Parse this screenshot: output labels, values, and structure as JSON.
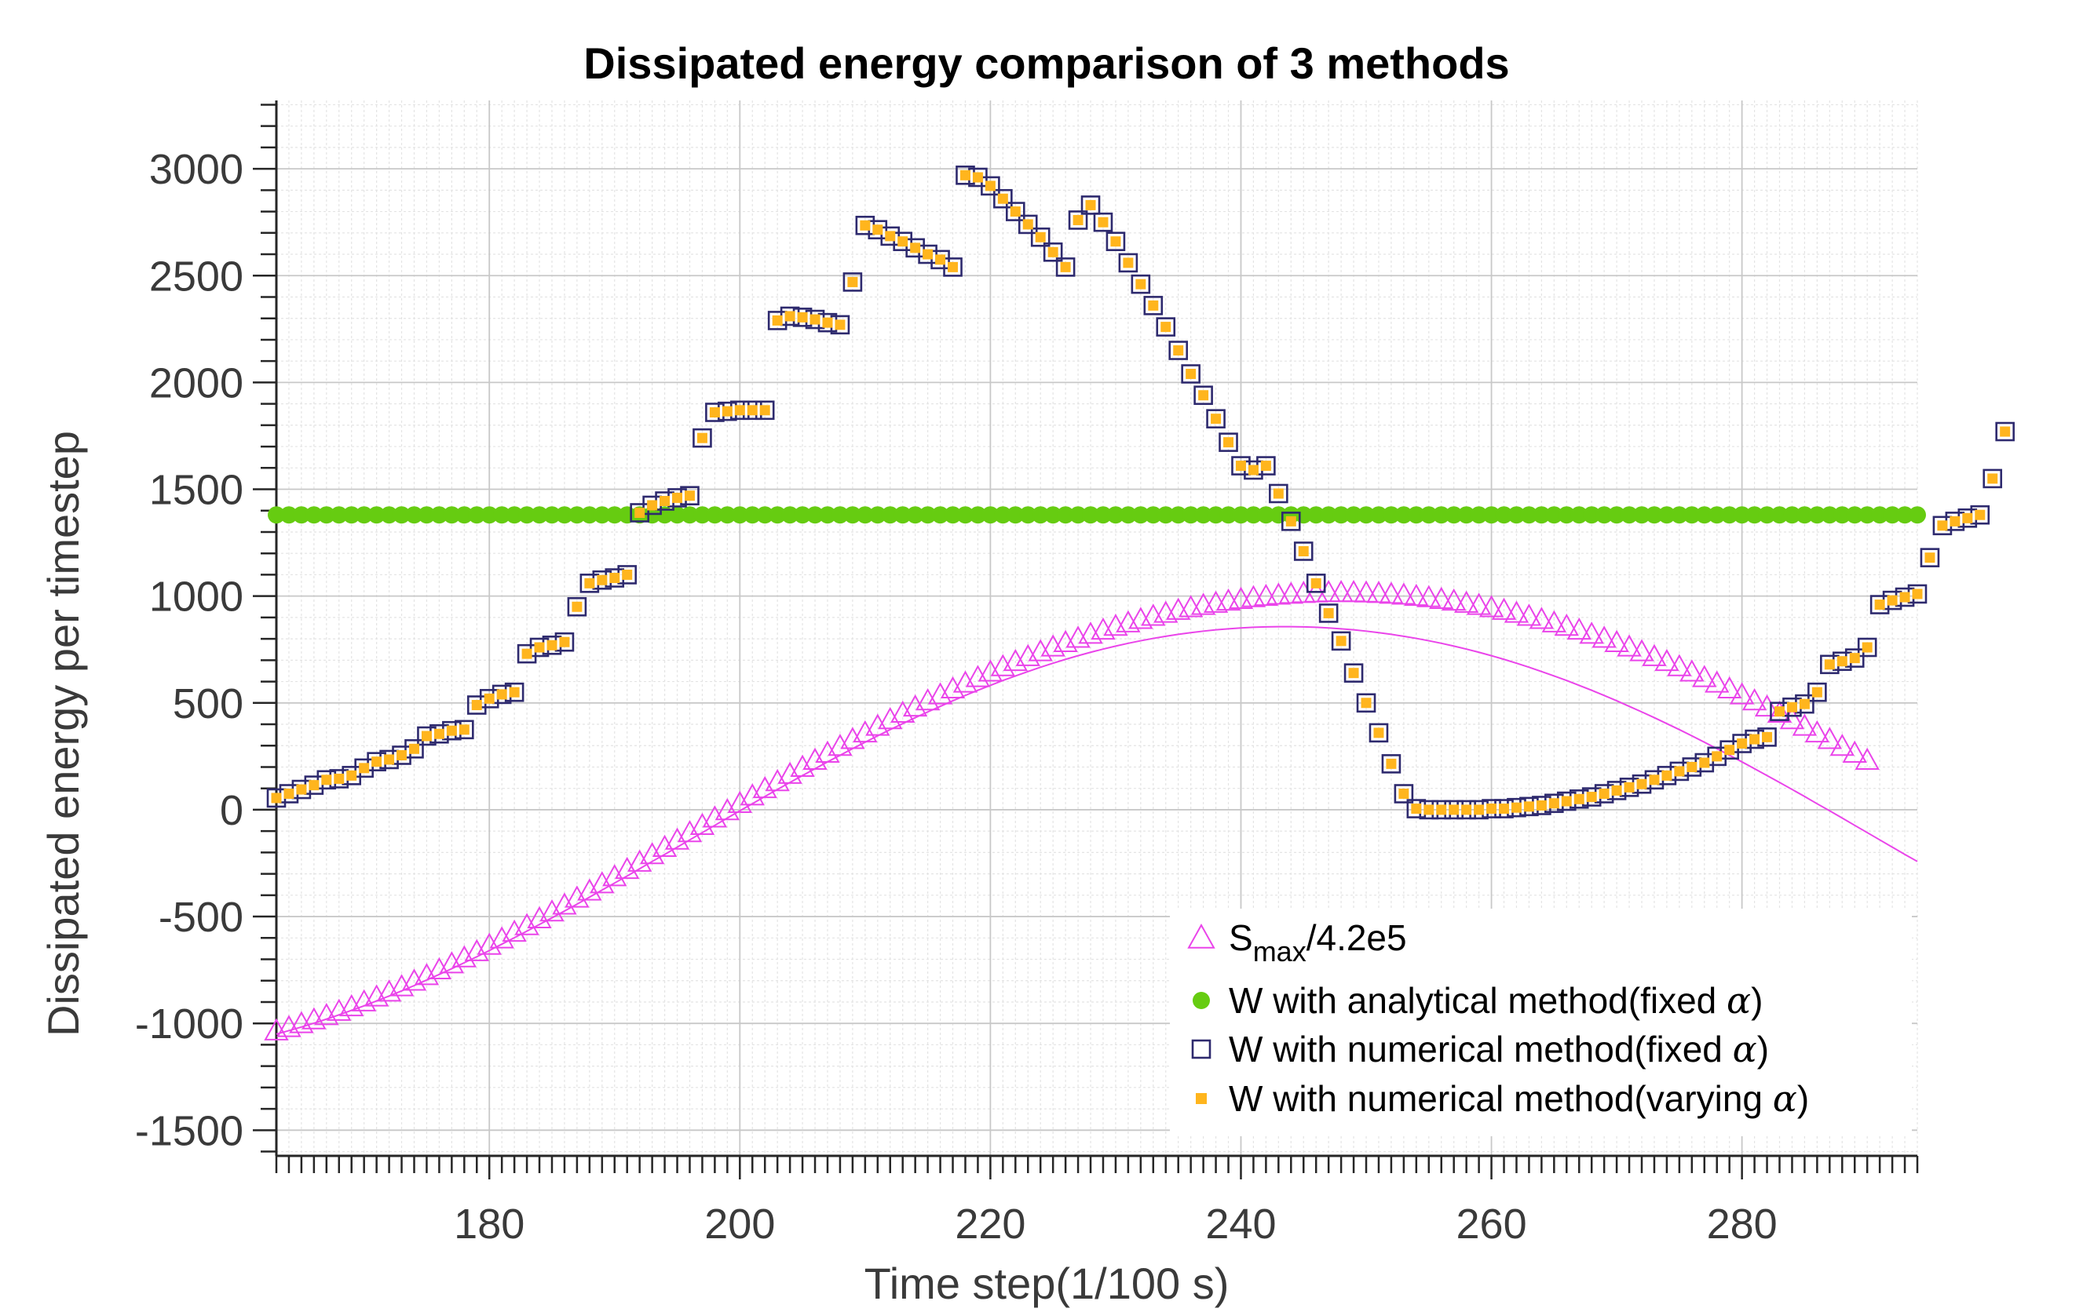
{
  "chart_data": {
    "type": "scatter",
    "title": "Dissipated energy comparison of 3 methods",
    "xlabel": "Time step(1/100 s)",
    "ylabel": "Dissipated energy per timestep",
    "xlim": [
      163,
      294
    ],
    "ylim": [
      -1620,
      3320
    ],
    "x_ticks": [
      180,
      200,
      220,
      240,
      260,
      280
    ],
    "y_ticks": [
      -1500,
      -1000,
      -500,
      0,
      500,
      1000,
      1500,
      2000,
      2500,
      3000
    ],
    "grid": true,
    "minor_grid": true,
    "legend_position": "bottom-right",
    "legend": [
      {
        "key": "smax",
        "label_main": "S",
        "label_sub": "max",
        "label_rest": "/4.2e5",
        "marker": "triangle",
        "color": "#ea44ea"
      },
      {
        "key": "analytical",
        "label_text": "W with analytical method(fixed ",
        "label_alpha": "α",
        "label_close": ")",
        "marker": "circle",
        "color": "#66cc11"
      },
      {
        "key": "numfixed",
        "label_text": "W with numerical method(fixed ",
        "label_alpha": "α",
        "label_close": ")",
        "marker": "square-open",
        "color": "#2e2a6e"
      },
      {
        "key": "numvarying",
        "label_text": "W with numerical method(varying ",
        "label_alpha": "α",
        "label_close": ")",
        "marker": "square-filled",
        "color": "#ffb51d"
      }
    ],
    "series": [
      {
        "key": "smax",
        "x_start": 163,
        "x_step": 1,
        "values": [
          -1035,
          -1019,
          -1001,
          -983,
          -963,
          -943,
          -922,
          -899,
          -876,
          -853,
          -828,
          -802,
          -776,
          -749,
          -721,
          -693,
          -664,
          -634,
          -604,
          -573,
          -542,
          -510,
          -478,
          -446,
          -413,
          -380,
          -346,
          -313,
          -279,
          -245,
          -210,
          -176,
          -142,
          -107,
          -73,
          -38,
          -4,
          30,
          65,
          99,
          132,
          166,
          199,
          232,
          265,
          297,
          329,
          360,
          391,
          422,
          452,
          481,
          510,
          538,
          566,
          593,
          619,
          645,
          670,
          694,
          717,
          740,
          762,
          783,
          803,
          822,
          841,
          859,
          875,
          891,
          906,
          920,
          934,
          946,
          957,
          967,
          977,
          985,
          993,
          999,
          1005,
          1009,
          1013,
          1015,
          1017,
          1017,
          1017,
          1015,
          1013,
          1009,
          1005,
          999,
          993,
          985,
          977,
          967,
          957,
          946,
          934,
          920,
          906,
          891,
          875,
          859,
          841,
          822,
          803,
          783,
          762,
          740,
          717,
          694,
          670,
          645,
          619,
          593,
          566,
          538,
          510,
          481,
          452,
          422,
          391,
          360,
          329,
          297,
          265,
          232
        ]
      },
      {
        "key": "analytical",
        "x_start": 163,
        "x_step": 1,
        "count": 132,
        "constant": 1380
      },
      {
        "key": "numfixed",
        "x_start": 163,
        "x_step": 1,
        "values": [
          55,
          75,
          95,
          115,
          140,
          145,
          160,
          195,
          225,
          235,
          255,
          285,
          345,
          355,
          370,
          375,
          490,
          520,
          540,
          550,
          730,
          760,
          770,
          785,
          950,
          1060,
          1075,
          1085,
          1100,
          1390,
          1425,
          1445,
          1460,
          1470,
          1740,
          1860,
          1865,
          1870,
          1870,
          1870,
          2290,
          2310,
          2305,
          2295,
          2280,
          2270,
          2470,
          2735,
          2715,
          2685,
          2660,
          2630,
          2600,
          2575,
          2540,
          2970,
          2960,
          2920,
          2860,
          2800,
          2740,
          2680,
          2610,
          2540,
          2760,
          2830,
          2750,
          2660,
          2560,
          2460,
          2360,
          2260,
          2150,
          2040,
          1940,
          1830,
          1720,
          1610,
          1590,
          1610,
          1480,
          1350,
          1210,
          1060,
          920,
          790,
          640,
          500,
          360,
          215,
          75,
          5,
          0,
          0,
          0,
          0,
          0,
          5,
          5,
          10,
          15,
          20,
          30,
          40,
          50,
          60,
          75,
          90,
          105,
          120,
          140,
          160,
          180,
          200,
          220,
          250,
          280,
          310,
          330,
          340,
          460,
          480,
          495,
          550,
          680,
          695,
          710,
          760,
          960,
          980,
          995,
          1010,
          1180,
          1330,
          1350,
          1365,
          1380,
          1550,
          1770
        ]
      },
      {
        "key": "numvarying",
        "x_start": 163,
        "x_step": 1,
        "values": [
          55,
          75,
          95,
          115,
          140,
          145,
          160,
          195,
          225,
          235,
          255,
          285,
          345,
          355,
          370,
          375,
          490,
          520,
          540,
          550,
          730,
          760,
          770,
          785,
          950,
          1060,
          1075,
          1085,
          1100,
          1390,
          1425,
          1445,
          1460,
          1470,
          1740,
          1860,
          1865,
          1870,
          1870,
          1870,
          2290,
          2310,
          2305,
          2295,
          2280,
          2270,
          2470,
          2735,
          2715,
          2685,
          2660,
          2630,
          2600,
          2575,
          2540,
          2970,
          2960,
          2920,
          2860,
          2800,
          2740,
          2680,
          2610,
          2540,
          2760,
          2830,
          2750,
          2660,
          2560,
          2460,
          2360,
          2260,
          2150,
          2040,
          1940,
          1830,
          1720,
          1610,
          1590,
          1610,
          1480,
          1350,
          1210,
          1060,
          920,
          790,
          640,
          500,
          360,
          215,
          75,
          5,
          0,
          0,
          0,
          0,
          0,
          5,
          5,
          10,
          15,
          20,
          30,
          40,
          50,
          60,
          75,
          90,
          105,
          120,
          140,
          160,
          180,
          200,
          220,
          250,
          280,
          310,
          330,
          340,
          460,
          480,
          495,
          550,
          680,
          695,
          710,
          760,
          960,
          980,
          995,
          1010,
          1180,
          1330,
          1350,
          1365,
          1380,
          1550,
          1770
        ]
      }
    ],
    "smax_curve": {
      "x_start": 163,
      "x_step": 1,
      "description_free": true,
      "values": [
        -1050,
        -1034,
        -1017,
        -999,
        -980,
        -960,
        -939,
        -918,
        -895,
        -872,
        -848,
        -823,
        -797,
        -771,
        -744,
        -716,
        -688,
        -659,
        -629,
        -599,
        -568,
        -537,
        -506,
        -474,
        -442,
        -409,
        -376,
        -343,
        -310,
        -276,
        -242,
        -209,
        -175,
        -141,
        -107,
        -73,
        -39,
        -5,
        28,
        62,
        95,
        128,
        160,
        192,
        224,
        255,
        286,
        316,
        346,
        375,
        403,
        431,
        458,
        484,
        510,
        535,
        559,
        582,
        605,
        626,
        647,
        667,
        686,
        704,
        721,
        737,
        752,
        766,
        779,
        791,
        802,
        812,
        821,
        829,
        836,
        842,
        847,
        851,
        854,
        856,
        857,
        857,
        856,
        854,
        851,
        847,
        842,
        836,
        829,
        821,
        812,
        802,
        791,
        779,
        766,
        752,
        737,
        721,
        704,
        686,
        667,
        647,
        626,
        605,
        582,
        559,
        535,
        510,
        484,
        458,
        431,
        403,
        375,
        346,
        316,
        286,
        255,
        224,
        192,
        160,
        128,
        95,
        62,
        28,
        -5,
        -39,
        -73,
        -107,
        -141,
        -175,
        -209,
        -242
      ]
    }
  }
}
